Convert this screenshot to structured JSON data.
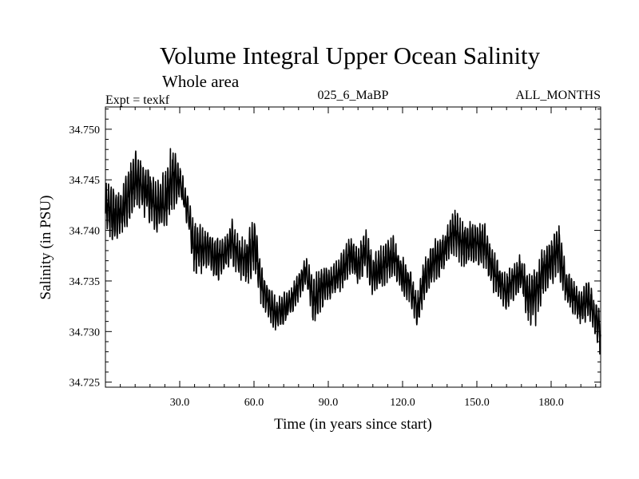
{
  "chart_data": {
    "type": "line",
    "title": "Volume Integral Upper Ocean Salinity",
    "subtitle": "Whole area",
    "experiment": "Expt = texkf",
    "run_label": "025_6_MaBP",
    "months_label": "ALL_MONTHS",
    "xlabel": "Time (in years since start)",
    "ylabel": "Salinity (in PSU)",
    "xlim": [
      0,
      200
    ],
    "ylim": [
      34.7245,
      34.7522
    ],
    "x_ticks": [
      30,
      60,
      90,
      120,
      150,
      180
    ],
    "x_tick_labels": [
      "30.0",
      "60.0",
      "90.0",
      "120.0",
      "150.0",
      "180.0"
    ],
    "y_ticks": [
      34.725,
      34.73,
      34.735,
      34.74,
      34.745,
      34.75
    ],
    "y_tick_labels": [
      "34.725",
      "34.730",
      "34.735",
      "34.740",
      "34.745",
      "34.750"
    ],
    "series": [
      {
        "name": "salinity",
        "x": [
          0,
          3,
          6,
          9,
          12,
          15,
          18,
          21,
          24,
          27,
          30,
          33,
          36,
          39,
          42,
          45,
          48,
          51,
          54,
          57,
          60,
          63,
          66,
          69,
          72,
          75,
          78,
          81,
          84,
          87,
          90,
          93,
          96,
          99,
          102,
          105,
          108,
          111,
          114,
          117,
          120,
          123,
          126,
          129,
          132,
          135,
          138,
          141,
          144,
          147,
          150,
          153,
          156,
          159,
          162,
          165,
          168,
          171,
          174,
          177,
          180,
          183,
          186,
          189,
          192,
          195,
          198,
          200
        ],
        "hi": [
          34.7455,
          34.7445,
          34.744,
          34.746,
          34.748,
          34.747,
          34.7465,
          34.745,
          34.746,
          34.749,
          34.7465,
          34.744,
          34.741,
          34.7405,
          34.7405,
          34.7395,
          34.7395,
          34.7415,
          34.7395,
          34.7395,
          34.742,
          34.7365,
          34.735,
          34.7335,
          34.734,
          34.7345,
          34.736,
          34.7375,
          34.7355,
          34.7365,
          34.7365,
          34.737,
          34.7385,
          34.7395,
          34.7385,
          34.7405,
          34.7375,
          34.7385,
          34.7395,
          34.7395,
          34.7375,
          34.7365,
          34.734,
          34.7375,
          34.739,
          34.7395,
          34.7405,
          34.7425,
          34.741,
          34.741,
          34.741,
          34.741,
          34.7385,
          34.737,
          34.736,
          34.7375,
          34.738,
          34.736,
          34.737,
          34.7385,
          34.7395,
          34.741,
          34.7365,
          34.7355,
          34.734,
          34.7355,
          34.733,
          34.7325
        ],
        "lo": [
          34.7395,
          34.7385,
          34.739,
          34.7405,
          34.742,
          34.7415,
          34.7405,
          34.7395,
          34.739,
          34.7415,
          34.743,
          34.7405,
          34.7355,
          34.7355,
          34.736,
          34.7345,
          34.7355,
          34.7365,
          34.735,
          34.7345,
          34.7355,
          34.7325,
          34.731,
          34.7297,
          34.7305,
          34.7315,
          34.733,
          34.7345,
          34.7305,
          34.732,
          34.733,
          34.7335,
          34.734,
          34.7355,
          34.7345,
          34.7355,
          34.7335,
          34.734,
          34.7345,
          34.735,
          34.7335,
          34.7325,
          34.7302,
          34.733,
          34.7345,
          34.735,
          34.7365,
          34.7375,
          34.736,
          34.7365,
          34.7365,
          34.736,
          34.734,
          34.733,
          34.7315,
          34.733,
          34.7335,
          34.7305,
          34.7305,
          34.7335,
          34.7345,
          34.7355,
          34.7325,
          34.7315,
          34.7305,
          34.731,
          34.7292,
          34.7272
        ]
      }
    ]
  }
}
